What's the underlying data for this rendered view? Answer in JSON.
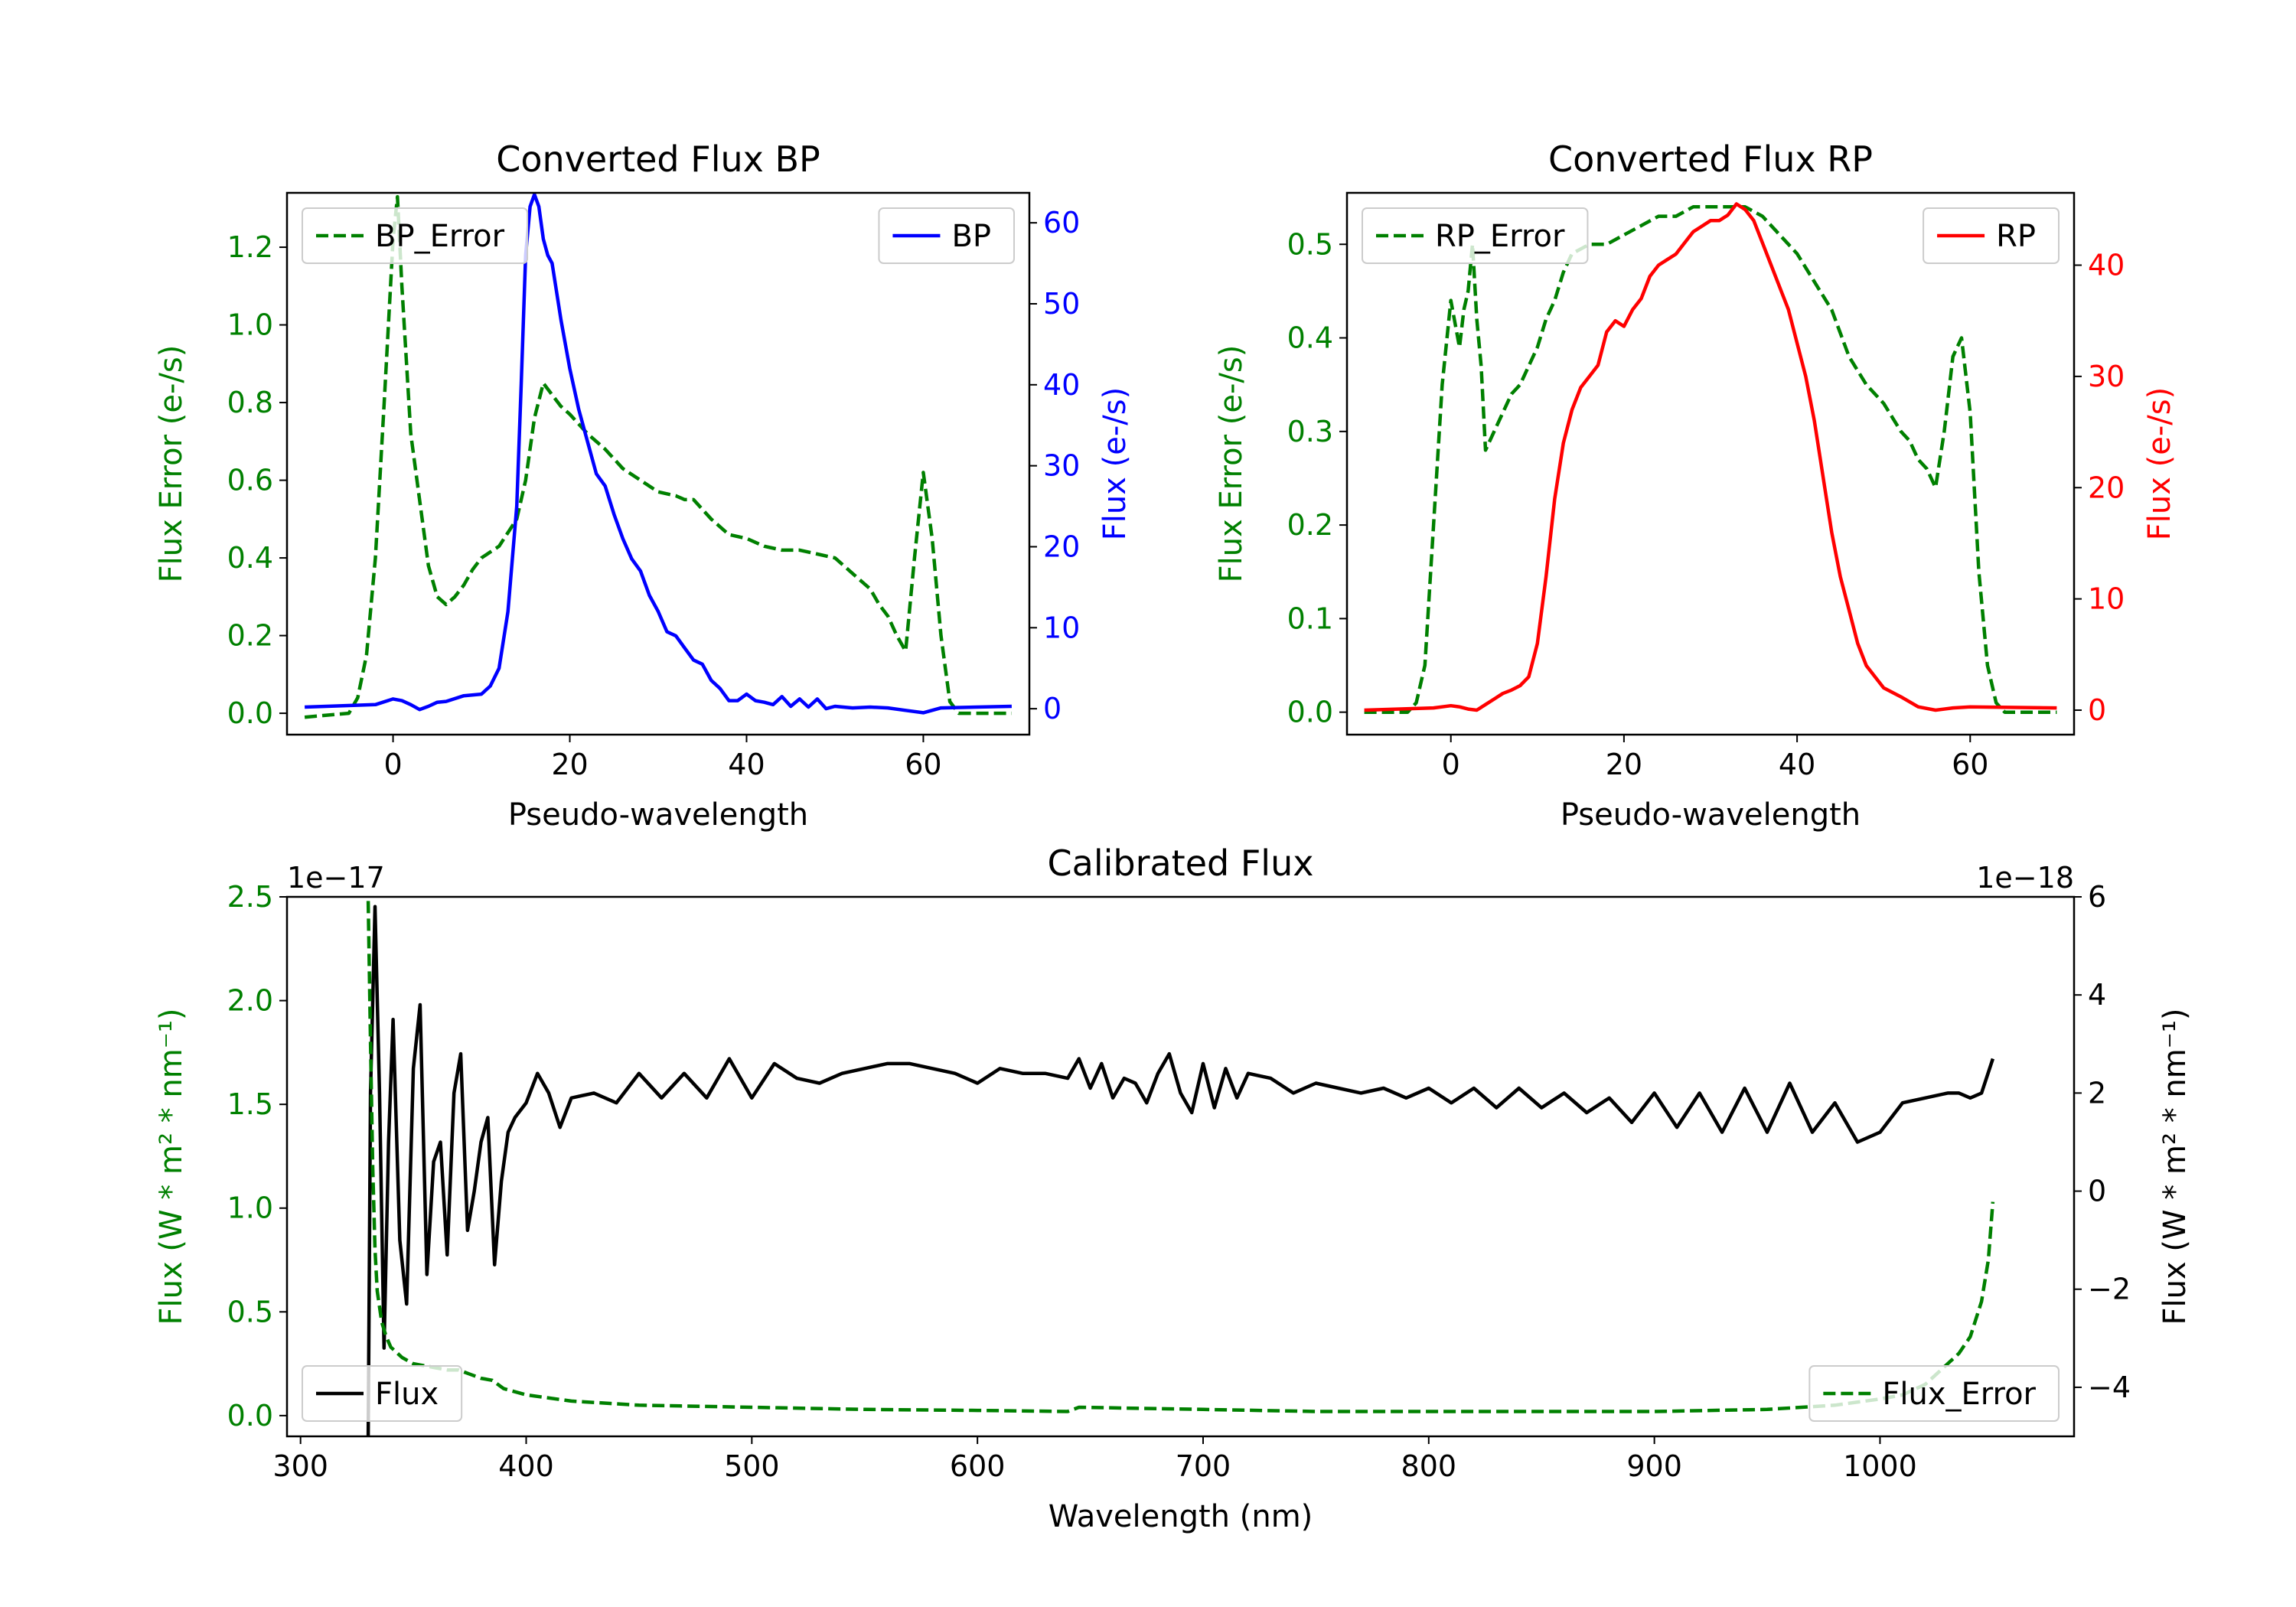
{
  "chart_data": [
    {
      "type": "line",
      "title": "Converted Flux BP",
      "xlabel": "Pseudo-wavelength",
      "ylabel_left": "Flux Error (e-/s)",
      "ylabel_right": "Flux (e-/s)",
      "xlim": [
        -12,
        72
      ],
      "ylim_left": [
        -0.055,
        1.34
      ],
      "ylim_right": [
        -3.2,
        63.7
      ],
      "xticks": [
        0,
        20,
        40,
        60
      ],
      "yticks_left": [
        0.0,
        0.2,
        0.4,
        0.6,
        0.8,
        1.0,
        1.2
      ],
      "yticks_right": [
        0,
        10,
        20,
        30,
        40,
        50,
        60
      ],
      "legend_left": "top-left",
      "legend_right": "top-right",
      "colors": {
        "left": "#008000",
        "right": "#0000ff"
      },
      "series": [
        {
          "name": "BP_Error",
          "axis": "left",
          "style": "dashed",
          "color": "#008000",
          "x": [
            -10,
            -5,
            -4,
            -3,
            -2,
            -1,
            0,
            0.5,
            1,
            2,
            3,
            4,
            5,
            6,
            7,
            8,
            9,
            10,
            12,
            14,
            15,
            16,
            17,
            18,
            19,
            20,
            22,
            24,
            26,
            28,
            30,
            32,
            33,
            34,
            36,
            38,
            40,
            42,
            44,
            46,
            48,
            50,
            52,
            54,
            55,
            56,
            57,
            58,
            59,
            60,
            61,
            62,
            63,
            64,
            65,
            70
          ],
          "y": [
            -0.01,
            0.0,
            0.04,
            0.15,
            0.4,
            0.8,
            1.22,
            1.33,
            1.1,
            0.72,
            0.55,
            0.38,
            0.3,
            0.28,
            0.3,
            0.33,
            0.37,
            0.4,
            0.43,
            0.5,
            0.6,
            0.76,
            0.85,
            0.82,
            0.79,
            0.77,
            0.72,
            0.68,
            0.63,
            0.6,
            0.57,
            0.56,
            0.55,
            0.55,
            0.5,
            0.46,
            0.45,
            0.43,
            0.42,
            0.42,
            0.41,
            0.4,
            0.36,
            0.32,
            0.28,
            0.25,
            0.2,
            0.16,
            0.4,
            0.62,
            0.45,
            0.2,
            0.03,
            0.0,
            0.0,
            0.0
          ]
        },
        {
          "name": "BP",
          "axis": "right",
          "style": "solid",
          "color": "#0000ff",
          "x": [
            -10,
            -2,
            0,
            1,
            2,
            3,
            4,
            5,
            6,
            8,
            10,
            11,
            12,
            13,
            14,
            14.5,
            15,
            15.5,
            16,
            16.5,
            17,
            17.5,
            18,
            19,
            20,
            21,
            22,
            23,
            24,
            25,
            26,
            27,
            28,
            29,
            30,
            31,
            32,
            33,
            34,
            35,
            36,
            37,
            38,
            39,
            40,
            41,
            42,
            43,
            44,
            45,
            46,
            47,
            48,
            49,
            50,
            52,
            54,
            56,
            58,
            60,
            62,
            70
          ],
          "y": [
            0.2,
            0.5,
            1.2,
            1.0,
            0.5,
            -0.1,
            0.3,
            0.8,
            0.9,
            1.6,
            1.8,
            2.8,
            5.0,
            12.0,
            25.0,
            40.0,
            56.0,
            62.0,
            63.5,
            62.0,
            58.0,
            56.0,
            55.0,
            48.0,
            42.0,
            37.0,
            33.0,
            29.0,
            27.5,
            24.0,
            21.0,
            18.5,
            17.0,
            14.0,
            12.0,
            9.5,
            9.0,
            7.5,
            6.0,
            5.5,
            3.5,
            2.5,
            1.0,
            1.0,
            1.8,
            1.0,
            0.8,
            0.5,
            1.5,
            0.3,
            1.2,
            0.2,
            1.2,
            0.0,
            0.3,
            0.1,
            0.2,
            0.1,
            -0.2,
            -0.5,
            0.1,
            0.3
          ]
        }
      ]
    },
    {
      "type": "line",
      "title": "Converted Flux RP",
      "xlabel": "Pseudo-wavelength",
      "ylabel_left": "Flux Error (e-/s)",
      "ylabel_right": "Flux (e-/s)",
      "xlim": [
        -12,
        72
      ],
      "ylim_left": [
        -0.024,
        0.555
      ],
      "ylim_right": [
        -2.2,
        46.5
      ],
      "xticks": [
        0,
        20,
        40,
        60
      ],
      "yticks_left": [
        0.0,
        0.1,
        0.2,
        0.3,
        0.4,
        0.5
      ],
      "yticks_right": [
        0,
        10,
        20,
        30,
        40
      ],
      "legend_left": "top-left",
      "legend_right": "top-right",
      "colors": {
        "left": "#008000",
        "right": "#ff0000"
      },
      "series": [
        {
          "name": "RP_Error",
          "axis": "left",
          "style": "dashed",
          "color": "#008000",
          "x": [
            -10,
            -5,
            -4,
            -3,
            -2,
            -1,
            0,
            1,
            1.5,
            2,
            2.5,
            3,
            3.5,
            4,
            5,
            6,
            7,
            8,
            9,
            10,
            11,
            12,
            13,
            14,
            16,
            18,
            20,
            22,
            24,
            26,
            28,
            30,
            32,
            34,
            36,
            38,
            40,
            42,
            44,
            46,
            48,
            50,
            52,
            53,
            54,
            55,
            56,
            57,
            58,
            59,
            60,
            61,
            62,
            63,
            64,
            70
          ],
          "y": [
            0.0,
            0.0,
            0.01,
            0.05,
            0.2,
            0.35,
            0.44,
            0.39,
            0.43,
            0.45,
            0.5,
            0.42,
            0.37,
            0.28,
            0.3,
            0.32,
            0.34,
            0.35,
            0.37,
            0.39,
            0.42,
            0.44,
            0.47,
            0.49,
            0.5,
            0.5,
            0.51,
            0.52,
            0.53,
            0.53,
            0.54,
            0.54,
            0.54,
            0.54,
            0.53,
            0.51,
            0.49,
            0.46,
            0.43,
            0.38,
            0.35,
            0.33,
            0.3,
            0.29,
            0.27,
            0.26,
            0.24,
            0.3,
            0.38,
            0.4,
            0.32,
            0.15,
            0.05,
            0.01,
            0.0,
            0.0
          ]
        },
        {
          "name": "RP",
          "axis": "right",
          "style": "solid",
          "color": "#ff0000",
          "x": [
            -10,
            -2,
            0,
            1,
            2,
            3,
            4,
            5,
            6,
            7,
            8,
            9,
            10,
            11,
            12,
            13,
            14,
            15,
            16,
            17,
            18,
            19,
            20,
            21,
            22,
            23,
            24,
            25,
            26,
            27,
            28,
            29,
            30,
            31,
            32,
            33,
            34,
            35,
            36,
            37,
            38,
            39,
            40,
            41,
            42,
            43,
            44,
            45,
            46,
            47,
            48,
            50,
            52,
            54,
            56,
            58,
            60,
            70
          ],
          "y": [
            0.0,
            0.2,
            0.4,
            0.3,
            0.1,
            0.0,
            0.5,
            1.0,
            1.5,
            1.8,
            2.2,
            3.0,
            6.0,
            12.0,
            19.0,
            24.0,
            27.0,
            29.0,
            30.0,
            31.0,
            34.0,
            35.0,
            34.5,
            36.0,
            37.0,
            39.0,
            40.0,
            40.5,
            41.0,
            42.0,
            43.0,
            43.5,
            44.0,
            44.0,
            44.5,
            45.5,
            45.0,
            44.0,
            42.0,
            40.0,
            38.0,
            36.0,
            33.0,
            30.0,
            26.0,
            21.0,
            16.0,
            12.0,
            9.0,
            6.0,
            4.0,
            2.0,
            1.2,
            0.3,
            0.0,
            0.2,
            0.3,
            0.2
          ]
        }
      ]
    },
    {
      "type": "line",
      "title": "Calibrated Flux",
      "xlabel": "Wavelength (nm)",
      "ylabel_left": "Flux (W * m² * nm⁻¹)",
      "ylabel_right": "Flux (W * m² * nm⁻¹)",
      "offset_left": "1e−17",
      "offset_right": "1e−18",
      "xlim": [
        294,
        1086
      ],
      "ylim_left": [
        -0.1,
        2.5
      ],
      "ylim_right": [
        -5.0,
        6.0
      ],
      "xticks": [
        300,
        400,
        500,
        600,
        700,
        800,
        900,
        1000
      ],
      "yticks_left": [
        0.0,
        0.5,
        1.0,
        1.5,
        2.0,
        2.5
      ],
      "yticks_right": [
        -4,
        -2,
        0,
        2,
        4,
        6
      ],
      "legend_left": "bottom-left",
      "legend_right": "bottom-right",
      "colors": {
        "left": "#008000",
        "right": "#000000"
      },
      "series": [
        {
          "name": "Flux",
          "axis": "right",
          "style": "solid",
          "color": "#000000",
          "x": [
            330,
            331,
            333,
            335,
            337,
            339,
            341,
            344,
            347,
            350,
            353,
            356,
            359,
            362,
            365,
            368,
            371,
            374,
            377,
            380,
            383,
            386,
            389,
            392,
            395,
            400,
            405,
            410,
            415,
            420,
            430,
            440,
            450,
            460,
            470,
            480,
            490,
            500,
            510,
            520,
            530,
            540,
            550,
            560,
            570,
            580,
            590,
            600,
            610,
            620,
            630,
            640,
            645,
            650,
            655,
            660,
            665,
            670,
            675,
            680,
            685,
            690,
            695,
            700,
            705,
            710,
            715,
            720,
            730,
            740,
            750,
            760,
            770,
            780,
            790,
            800,
            810,
            820,
            830,
            840,
            850,
            860,
            870,
            880,
            890,
            900,
            910,
            920,
            930,
            940,
            950,
            960,
            970,
            980,
            990,
            1000,
            1010,
            1020,
            1030,
            1035,
            1040,
            1045,
            1050
          ],
          "y": [
            -5.0,
            2.0,
            5.8,
            2.0,
            -3.2,
            1.0,
            3.5,
            -1.0,
            -2.3,
            2.5,
            3.8,
            -1.7,
            0.6,
            1.0,
            -1.3,
            2.0,
            2.8,
            -0.8,
            0.0,
            1.0,
            1.5,
            -1.5,
            0.2,
            1.2,
            1.5,
            1.8,
            2.4,
            2.0,
            1.3,
            1.9,
            2.0,
            1.8,
            2.4,
            1.9,
            2.4,
            1.9,
            2.7,
            1.9,
            2.6,
            2.3,
            2.2,
            2.4,
            2.5,
            2.6,
            2.6,
            2.5,
            2.4,
            2.2,
            2.5,
            2.4,
            2.4,
            2.3,
            2.7,
            2.1,
            2.6,
            1.9,
            2.3,
            2.2,
            1.8,
            2.4,
            2.8,
            2.0,
            1.6,
            2.6,
            1.7,
            2.5,
            1.9,
            2.4,
            2.3,
            2.0,
            2.2,
            2.1,
            2.0,
            2.1,
            1.9,
            2.1,
            1.8,
            2.1,
            1.7,
            2.1,
            1.7,
            2.0,
            1.6,
            1.9,
            1.4,
            2.0,
            1.3,
            2.0,
            1.2,
            2.1,
            1.2,
            2.2,
            1.2,
            1.8,
            1.0,
            1.2,
            1.8,
            1.9,
            2.0,
            2.0,
            1.9,
            2.0,
            2.7
          ]
        },
        {
          "name": "Flux_Error",
          "axis": "left",
          "style": "dashed",
          "color": "#008000",
          "x": [
            330,
            331,
            332,
            333,
            334,
            336,
            338,
            340,
            345,
            350,
            355,
            360,
            365,
            370,
            375,
            380,
            385,
            390,
            400,
            420,
            450,
            500,
            550,
            600,
            640,
            645,
            700,
            750,
            800,
            850,
            900,
            950,
            980,
            1000,
            1010,
            1020,
            1025,
            1030,
            1035,
            1040,
            1045,
            1048,
            1050
          ],
          "y": [
            2.48,
            1.8,
            1.2,
            0.8,
            0.6,
            0.45,
            0.38,
            0.33,
            0.28,
            0.25,
            0.24,
            0.23,
            0.22,
            0.22,
            0.2,
            0.18,
            0.17,
            0.13,
            0.1,
            0.07,
            0.05,
            0.04,
            0.03,
            0.025,
            0.02,
            0.04,
            0.03,
            0.02,
            0.02,
            0.02,
            0.02,
            0.03,
            0.05,
            0.08,
            0.1,
            0.15,
            0.2,
            0.25,
            0.3,
            0.38,
            0.55,
            0.75,
            1.03
          ]
        }
      ]
    }
  ]
}
